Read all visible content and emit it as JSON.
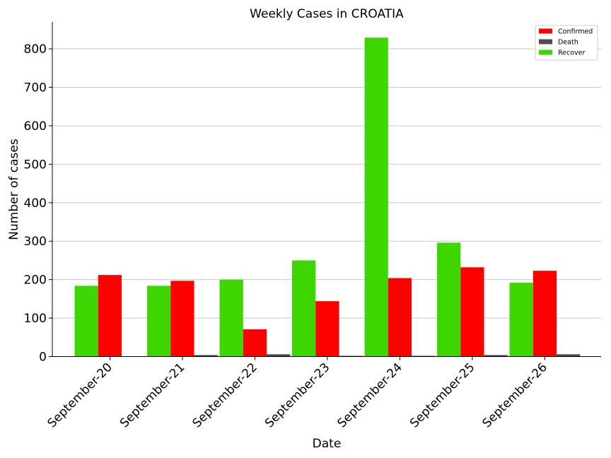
{
  "chart_data": {
    "type": "bar",
    "title": "Weekly Cases in CROATIA",
    "xlabel": "Date",
    "ylabel": "Number of cases",
    "categories": [
      "September-20",
      "September-21",
      "September-22",
      "September-23",
      "September-24",
      "September-25",
      "September-26"
    ],
    "series": [
      {
        "name": "Recover",
        "color": "#3dd600",
        "values": [
          184,
          184,
          200,
          250,
          829,
          296,
          192
        ]
      },
      {
        "name": "Confirmed",
        "color": "#ff0000",
        "values": [
          212,
          197,
          71,
          144,
          204,
          232,
          223
        ]
      },
      {
        "name": "Death",
        "color": "#4d4d4d",
        "values": [
          0,
          4,
          6,
          2,
          2,
          4,
          6
        ]
      }
    ],
    "legend_order": [
      "Confirmed",
      "Death",
      "Recover"
    ],
    "ylim": [
      0,
      870
    ],
    "yticks": [
      0,
      100,
      200,
      300,
      400,
      500,
      600,
      700,
      800
    ],
    "grid": "horizontal",
    "legend_position": "top-right"
  }
}
